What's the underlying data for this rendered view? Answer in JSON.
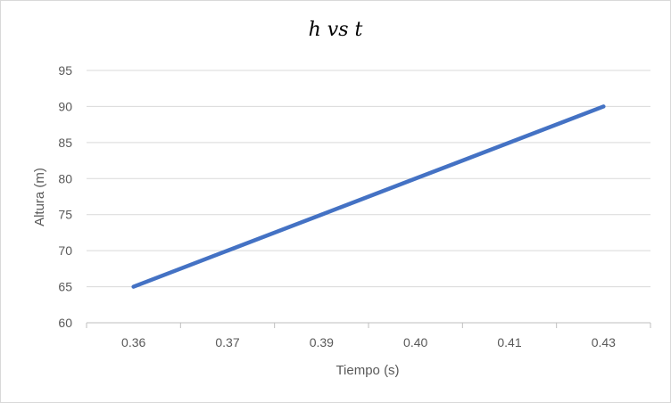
{
  "chart_data": {
    "type": "line",
    "title": "h vs t",
    "xlabel": "Tiempo (s)",
    "ylabel": "Altura (m)",
    "categories": [
      "0.36",
      "0.37",
      "0.39",
      "0.40",
      "0.41",
      "0.43"
    ],
    "series": [
      {
        "values": [
          65,
          70,
          75,
          80,
          85,
          90
        ],
        "color": "#4472c4"
      }
    ],
    "ylim": [
      60,
      95
    ],
    "yticks": [
      "60",
      "65",
      "70",
      "75",
      "80",
      "85",
      "90",
      "95"
    ],
    "grid": true,
    "legend": "none"
  }
}
